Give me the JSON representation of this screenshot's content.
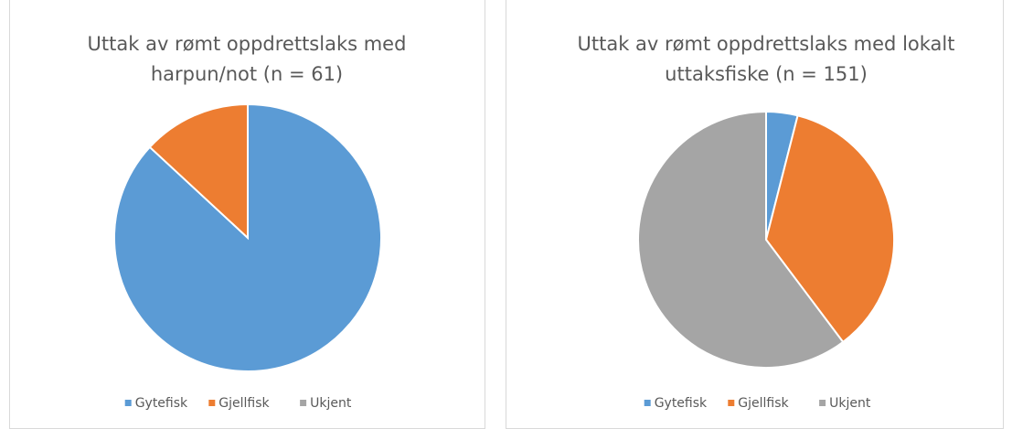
{
  "chart_data": [
    {
      "type": "pie",
      "title": "Uttak av rømt oppdrettslaks med harpun/not (n = 61)",
      "categories": [
        "Gytefisk",
        "Gjellfisk",
        "Ukjent"
      ],
      "values": [
        53,
        8,
        0
      ],
      "colors": [
        "#5b9bd5",
        "#ed7d31",
        "#a5a5a5"
      ],
      "legend": "bottom"
    },
    {
      "type": "pie",
      "title": "Uttak av rømt oppdrettslaks med lokalt uttaksfiske (n = 151)",
      "categories": [
        "Gytefisk",
        "Gjellfisk",
        "Ukjent"
      ],
      "values": [
        6,
        54,
        91
      ],
      "colors": [
        "#5b9bd5",
        "#ed7d31",
        "#a5a5a5"
      ],
      "legend": "bottom"
    }
  ]
}
